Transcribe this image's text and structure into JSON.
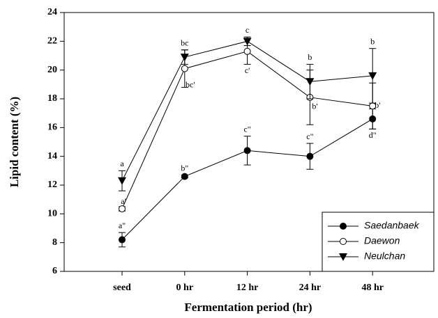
{
  "chart_data": {
    "type": "line",
    "x_label": "Fermentation period (hr)",
    "y_label": "Lipid content (%)",
    "categories": [
      "seed",
      "0 hr",
      "12 hr",
      "24 hr",
      "48 hr"
    ],
    "ylim": [
      6,
      24
    ],
    "yticks": [
      6,
      8,
      10,
      12,
      14,
      16,
      18,
      20,
      22,
      24
    ],
    "legend": "lower right",
    "series": [
      {
        "name": "Saedanbaek",
        "color": "#000000",
        "marker": "filled-circle",
        "values": [
          8.2,
          12.6,
          14.4,
          14.0,
          16.6
        ],
        "errors": [
          0.5,
          0.1,
          1.0,
          0.9,
          0.7
        ],
        "letters": [
          "a\"",
          "b\"",
          "c\"",
          "c\"",
          "d\""
        ]
      },
      {
        "name": "Daewon",
        "color": "#000000",
        "marker": "open-circle",
        "values": [
          10.35,
          20.1,
          21.3,
          18.1,
          17.5
        ],
        "errors": [
          0.15,
          1.3,
          0.9,
          1.9,
          1.6
        ],
        "letters": [
          "a'",
          "bc'",
          "c'",
          "b'",
          "b'"
        ]
      },
      {
        "name": "Neulchan",
        "color": "#000000",
        "marker": "filled-triangle-down",
        "values": [
          12.3,
          20.9,
          22.0,
          19.2,
          19.6
        ],
        "errors": [
          0.7,
          0.5,
          0.3,
          1.2,
          1.9
        ],
        "letters": [
          "a",
          "bc",
          "c",
          "b",
          "b"
        ]
      }
    ]
  }
}
